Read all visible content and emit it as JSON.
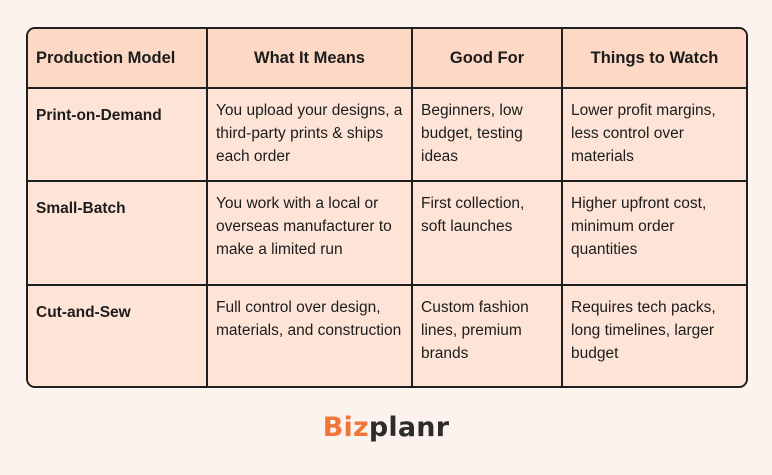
{
  "table": {
    "headers": [
      "Production Model",
      "What It Means",
      "Good For",
      "Things to Watch"
    ],
    "rows": [
      {
        "model": "Print-on-Demand",
        "means": "You upload your designs, a third-party prints & ships each order",
        "good_for": "Beginners, low budget, testing ideas",
        "watch": "Lower profit margins, less control over materials"
      },
      {
        "model": "Small-Batch",
        "means": "You work with a local or overseas manufacturer to make a limited run",
        "good_for": "First collection, soft launches",
        "watch": "Higher upfront cost, minimum order quantities"
      },
      {
        "model": "Cut-and-Sew",
        "means": "Full control over design, materials, and construction",
        "good_for": "Custom fashion lines, premium brands",
        "watch": "Requires tech packs, long timelines, larger budget"
      }
    ]
  },
  "logo": {
    "part1": "Biz",
    "part2": "planr",
    "colors": {
      "part1": "#f0763a",
      "part2": "#2c2c2c"
    }
  },
  "colors": {
    "background": "#fdf3ee",
    "header_bg": "#fdd8c4",
    "cell_bg": "#fde4d6",
    "border": "#1f1f1f"
  }
}
